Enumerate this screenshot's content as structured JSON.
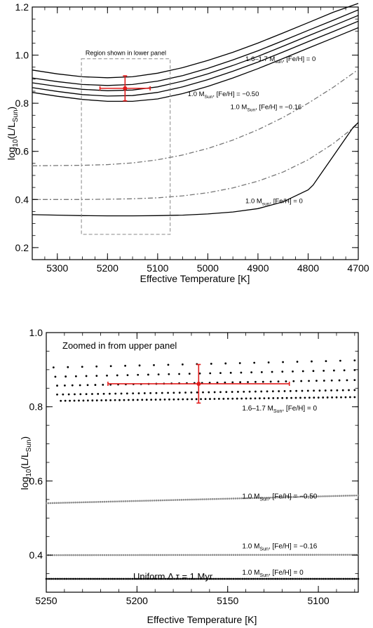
{
  "chart_data": [
    {
      "type": "line",
      "xlabel": "Effective Temperature [K]",
      "ylabel_main": "log",
      "ylabel_sub": "10",
      "ylabel_rest": "(L/L",
      "ylabel_sub2": "Sun",
      "ylabel_end": ")",
      "xlim": [
        5350,
        4700
      ],
      "ylim": [
        0.15,
        1.2
      ],
      "xticks": [
        5300,
        5200,
        5100,
        5000,
        4900,
        4800,
        4700
      ],
      "yticks": [
        0.2,
        0.4,
        0.6,
        0.8,
        1.0,
        1.2
      ],
      "region_label": "Region shown in lower panel",
      "region": {
        "x": [
          5252,
          5075
        ],
        "y": [
          0.255,
          0.985
        ]
      },
      "series": [
        {
          "style": "solid",
          "x": [
            5350,
            5300,
            5250,
            5200,
            5150,
            5100,
            5050,
            5000,
            4950,
            4900,
            4850,
            4800,
            4750,
            4700
          ],
          "y": [
            0.938,
            0.922,
            0.91,
            0.906,
            0.91,
            0.925,
            0.948,
            0.978,
            1.012,
            1.05,
            1.092,
            1.135,
            1.178,
            1.215
          ]
        },
        {
          "style": "solid",
          "x": [
            5350,
            5300,
            5250,
            5200,
            5150,
            5100,
            5050,
            5000,
            4950,
            4900,
            4850,
            4800,
            4750,
            4700
          ],
          "y": [
            0.905,
            0.89,
            0.878,
            0.874,
            0.878,
            0.892,
            0.915,
            0.945,
            0.98,
            1.018,
            1.06,
            1.103,
            1.145,
            1.188
          ]
        },
        {
          "style": "solid",
          "x": [
            5350,
            5300,
            5250,
            5200,
            5150,
            5100,
            5050,
            5000,
            4950,
            4900,
            4850,
            4800,
            4750,
            4700
          ],
          "y": [
            0.885,
            0.87,
            0.858,
            0.852,
            0.855,
            0.868,
            0.892,
            0.922,
            0.957,
            0.995,
            1.037,
            1.08,
            1.122,
            1.165
          ]
        },
        {
          "style": "solid",
          "x": [
            5350,
            5300,
            5250,
            5200,
            5150,
            5100,
            5050,
            5000,
            4950,
            4900,
            4850,
            4800,
            4750,
            4700
          ],
          "y": [
            0.865,
            0.849,
            0.836,
            0.83,
            0.832,
            0.845,
            0.868,
            0.898,
            0.933,
            0.971,
            1.013,
            1.056,
            1.098,
            1.141
          ]
        },
        {
          "style": "solid",
          "x": [
            5350,
            5300,
            5250,
            5200,
            5150,
            5100,
            5050,
            5000,
            4950,
            4900,
            4850,
            4800,
            4750,
            4700
          ],
          "y": [
            0.845,
            0.829,
            0.816,
            0.808,
            0.808,
            0.818,
            0.84,
            0.87,
            0.905,
            0.944,
            0.986,
            1.029,
            1.071,
            1.114
          ]
        },
        {
          "style": "dashdot",
          "x": [
            5350,
            5300,
            5250,
            5200,
            5150,
            5100,
            5050,
            5000,
            4950,
            4900,
            4850,
            4800,
            4750,
            4700
          ],
          "y": [
            0.54,
            0.541,
            0.542,
            0.545,
            0.552,
            0.565,
            0.585,
            0.612,
            0.647,
            0.69,
            0.741,
            0.8,
            0.866,
            0.94
          ]
        },
        {
          "style": "dashdot",
          "x": [
            5350,
            5300,
            5250,
            5200,
            5150,
            5100,
            5050,
            5000,
            4950,
            4900,
            4850,
            4800,
            4750,
            4700
          ],
          "y": [
            0.4,
            0.4,
            0.4,
            0.401,
            0.403,
            0.407,
            0.415,
            0.428,
            0.448,
            0.476,
            0.514,
            0.565,
            0.632,
            0.714
          ]
        },
        {
          "style": "solid",
          "x": [
            5350,
            5300,
            5250,
            5200,
            5150,
            5100,
            5050,
            5000,
            4950,
            4900,
            4850,
            4800,
            4790,
            4770,
            4750,
            4730,
            4710,
            4700
          ],
          "y": [
            0.337,
            0.335,
            0.333,
            0.332,
            0.332,
            0.333,
            0.335,
            0.34,
            0.348,
            0.362,
            0.39,
            0.44,
            0.46,
            0.52,
            0.58,
            0.64,
            0.7,
            0.72
          ]
        }
      ],
      "labels": [
        {
          "text": "1.6–1.7 M",
          "sub": "sun",
          "rest": ", [Fe/H] = 0",
          "x": 4925,
          "y": 0.975
        },
        {
          "text": "1.0 M",
          "sub": "Sun",
          "rest": ", [Fe/H] = −0.50",
          "x": 5040,
          "y": 0.83
        },
        {
          "text": "1.0 M",
          "sub": "Sun",
          "rest": ", [Fe/H] = −0.16",
          "x": 4955,
          "y": 0.775
        },
        {
          "text": "1.0 M",
          "sub": "sun",
          "rest": ", [Fe/H] = 0",
          "x": 4925,
          "y": 0.385
        }
      ],
      "point": {
        "x": 5165,
        "y": 0.862,
        "xerr": 50,
        "yerr": 0.052
      },
      "grid": false
    },
    {
      "type": "scatter",
      "xlabel": "Effective Temperature [K]",
      "ylabel_main": "log",
      "ylabel_sub": "10",
      "ylabel_rest": "(L/L",
      "ylabel_sub2": "Sun",
      "ylabel_end": ")",
      "xlim": [
        5250,
        5078
      ],
      "ylim": [
        0.3,
        1.0
      ],
      "xticks": [
        5250,
        5200,
        5150,
        5100
      ],
      "yticks": [
        0.4,
        0.6,
        0.8,
        1.0
      ],
      "title": "Zoomed in from upper panel",
      "footer": "Uniform Δ τ = 1 Myr",
      "labels": [
        {
          "text": "1.6–1.7 M",
          "sub": "Sun",
          "rest": ", [Fe/H] = 0",
          "x": 5142,
          "y": 0.79
        },
        {
          "text": "1.0 M",
          "sub": "Sun",
          "rest": ", [Fe/H] = −0.50",
          "x": 5142,
          "y": 0.553
        },
        {
          "text": "1.0 M",
          "sub": "Sun",
          "rest": ", [Fe/H] = −0.16",
          "x": 5142,
          "y": 0.418
        },
        {
          "text": "1.0 M",
          "sub": "Sun",
          "rest": ", [Fe/H] = 0",
          "x": 5142,
          "y": 0.347
        }
      ],
      "dotted_tracks": [
        {
          "name": "",
          "y0": 0.54,
          "y1": 0.561,
          "color": "#8a8a8a",
          "n": 150
        },
        {
          "name": "",
          "y0": 0.4,
          "y1": 0.401,
          "color": "#8a8a8a",
          "n": 150
        },
        {
          "name": "",
          "y0": 0.336,
          "y1": 0.336,
          "color": "#000000",
          "n": 170
        }
      ],
      "dot_tracks": [
        {
          "x0": 5246,
          "x1": 5080,
          "y0": 0.906,
          "y1": 0.925,
          "n": 22
        },
        {
          "x0": 5245,
          "x1": 5080,
          "y0": 0.881,
          "y1": 0.899,
          "n": 30
        },
        {
          "x0": 5244,
          "x1": 5080,
          "y0": 0.857,
          "y1": 0.872,
          "n": 40
        },
        {
          "x0": 5244,
          "x1": 5080,
          "y0": 0.833,
          "y1": 0.845,
          "n": 52
        },
        {
          "x0": 5242,
          "x1": 5080,
          "y0": 0.816,
          "y1": 0.826,
          "n": 66
        }
      ],
      "point": {
        "x": 5166,
        "y": 0.862,
        "xerr": 50,
        "yerr": 0.052
      },
      "grid": false
    }
  ]
}
